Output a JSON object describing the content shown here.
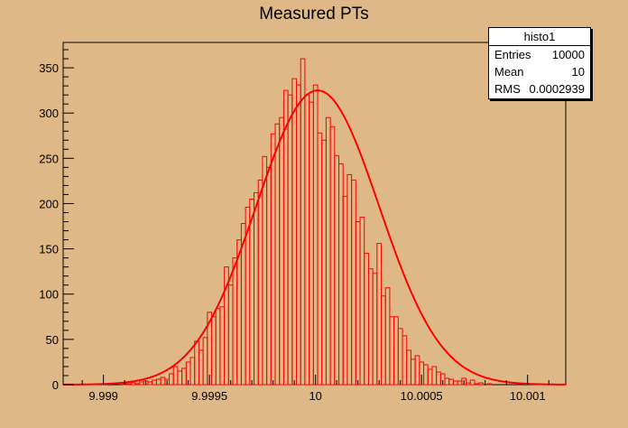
{
  "title": "Measured PTs",
  "stats": {
    "name": "histo1",
    "rows": [
      {
        "label": "Entries",
        "value": "10000"
      },
      {
        "label": "Mean",
        "value": "10"
      },
      {
        "label": "RMS",
        "value": "0.0002939"
      }
    ]
  },
  "colors": {
    "background": "#DEB887",
    "histogram": "#FF0000",
    "fit": "#FF0000",
    "axis": "#000000"
  },
  "chart_data": {
    "type": "histogram",
    "title": "Measured PTs",
    "xlim": [
      9.99881,
      10.00118
    ],
    "ylim": [
      0,
      378
    ],
    "x_ticks": [
      9.999,
      9.9995,
      10,
      10.0005,
      10.001
    ],
    "x_tick_labels": [
      "9.999",
      "9.9995",
      "10",
      "10.0005",
      "10.001"
    ],
    "y_ticks": [
      0,
      50,
      100,
      150,
      200,
      250,
      300,
      350
    ],
    "y_tick_labels": [
      "0",
      "50",
      "100",
      "150",
      "200",
      "250",
      "300",
      "350"
    ],
    "bin_width": 2e-05,
    "bins_x_start": 9.99881,
    "bin_counts": [
      0,
      0,
      0,
      0,
      0,
      0,
      0,
      0,
      0,
      0,
      0,
      0,
      0,
      0,
      1,
      1,
      2,
      1,
      3,
      4,
      3,
      5,
      6,
      8,
      6,
      12,
      20,
      15,
      18,
      25,
      30,
      48,
      38,
      52,
      80,
      75,
      84,
      86,
      130,
      110,
      140,
      160,
      178,
      196,
      205,
      212,
      226,
      252,
      240,
      277,
      288,
      295,
      325,
      320,
      338,
      331,
      360,
      320,
      312,
      331,
      278,
      270,
      295,
      285,
      253,
      244,
      208,
      232,
      226,
      180,
      185,
      145,
      128,
      123,
      156,
      98,
      107,
      75,
      75,
      62,
      54,
      38,
      28,
      32,
      25,
      22,
      17,
      20,
      14,
      12,
      7,
      6,
      4,
      4,
      7,
      2,
      5,
      1,
      2,
      0,
      1,
      0,
      0,
      0,
      0,
      0,
      0,
      0,
      0,
      0,
      0,
      0,
      0,
      0,
      0,
      0,
      0,
      0,
      0,
      0
    ],
    "fit": {
      "type": "gaussian",
      "constant": 325,
      "mean": 10.00001,
      "sigma": 0.00029
    },
    "legend": "top-right",
    "grid": false
  }
}
